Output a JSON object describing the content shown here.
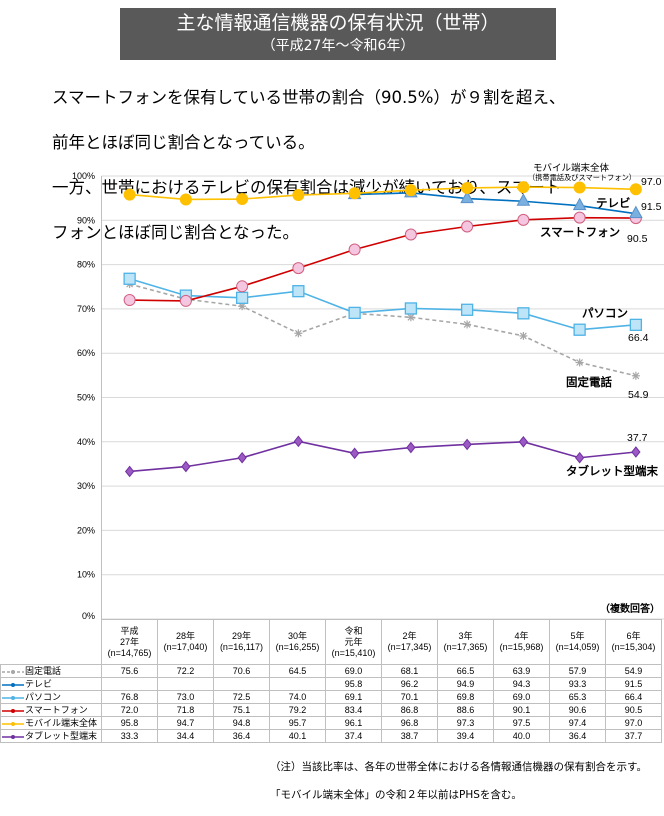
{
  "title": "主な情報通信機器の保有状況（世帯）",
  "subtitle": "（平成27年～令和6年）",
  "lead": [
    "スマートフォンを保有している世帯の割合（90.5%）が９割を超え、",
    "前年とほぼ同じ割合となっている。",
    "一方、世帯におけるテレビの保有割合は減少が続いており、スマート",
    "フォンとほぼ同じ割合となった。"
  ],
  "chart_data": {
    "type": "line",
    "categories": [
      [
        "平成",
        "27年",
        "(n=14,765)"
      ],
      [
        "28年",
        "(n=17,040)"
      ],
      [
        "29年",
        "(n=16,117)"
      ],
      [
        "30年",
        "(n=16,255)"
      ],
      [
        "令和",
        "元年",
        "(n=15,410)"
      ],
      [
        "2年",
        "(n=17,345)"
      ],
      [
        "3年",
        "(n=17,365)"
      ],
      [
        "4年",
        "(n=15,968)"
      ],
      [
        "5年",
        "(n=14,059)"
      ],
      [
        "6年",
        "(n=15,304)"
      ]
    ],
    "ylim": [
      0,
      100
    ],
    "yticks": [
      "0%",
      "10%",
      "20%",
      "30%",
      "40%",
      "50%",
      "60%",
      "70%",
      "80%",
      "90%",
      "100%"
    ],
    "grid": true,
    "note_multiple": "（複数回答）",
    "series": [
      {
        "name": "固定電話",
        "label": "固定電話",
        "color": "#a6a6a6",
        "marker": "asterisk",
        "dash": true,
        "values": [
          75.6,
          72.2,
          70.6,
          64.5,
          69.0,
          68.1,
          66.5,
          63.9,
          57.9,
          54.9
        ]
      },
      {
        "name": "テレビ",
        "label": "テレビ",
        "color": "#0070c0",
        "marker": "triangle",
        "values": [
          null,
          null,
          null,
          null,
          95.8,
          96.2,
          94.9,
          94.3,
          93.3,
          91.5
        ]
      },
      {
        "name": "パソコン",
        "label": "パソコン",
        "color": "#4fb3e6",
        "marker": "square",
        "values": [
          76.8,
          73.0,
          72.5,
          74.0,
          69.1,
          70.1,
          69.8,
          69.0,
          65.3,
          66.4
        ]
      },
      {
        "name": "スマートフォン",
        "label": "スマートフォン",
        "color": "#d00000",
        "marker": "circle",
        "values": [
          72.0,
          71.8,
          75.1,
          79.2,
          83.4,
          86.8,
          88.6,
          90.1,
          90.6,
          90.5
        ]
      },
      {
        "name": "モバイル端末全体",
        "label": "モバイル端末全体",
        "sublabel": "（携帯電話及びスマートフォン）",
        "color": "#ffc000",
        "marker": "dot",
        "values": [
          95.8,
          94.7,
          94.8,
          95.7,
          96.1,
          96.8,
          97.3,
          97.5,
          97.4,
          97.0
        ]
      },
      {
        "name": "タブレット型端末",
        "label": "タブレット型端末",
        "color": "#7030a0",
        "marker": "diamond",
        "values": [
          33.3,
          34.4,
          36.4,
          40.1,
          37.4,
          38.7,
          39.4,
          40.0,
          36.4,
          37.7
        ]
      }
    ]
  },
  "notes": [
    "（注）当該比率は、各年の世帯全体における各情報通信機器の保有割合を示す。",
    "「モバイル端末全体」の令和２年以前はPHSを含む。"
  ]
}
